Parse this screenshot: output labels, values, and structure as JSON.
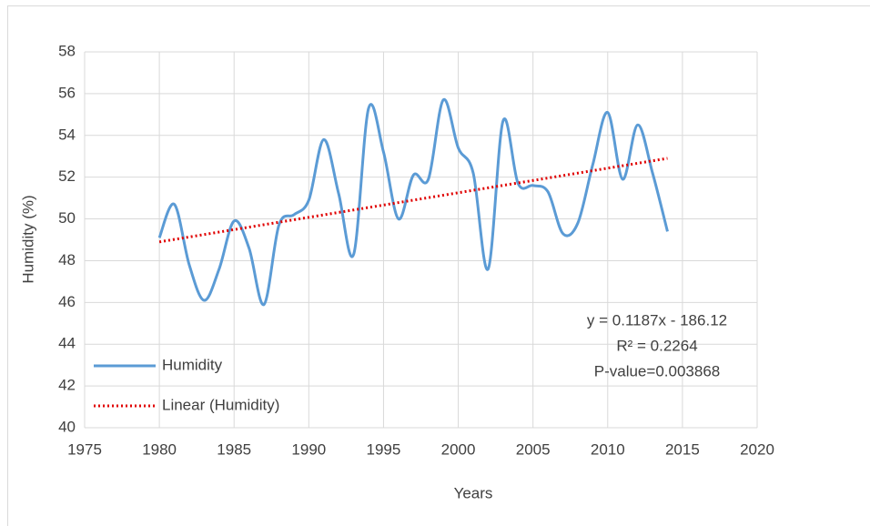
{
  "chart_data": {
    "type": "line",
    "x_label": "Years",
    "y_label": "Humidity (%)",
    "x": [
      1980,
      1981,
      1982,
      1983,
      1984,
      1985,
      1986,
      1987,
      1988,
      1989,
      1990,
      1991,
      1992,
      1993,
      1994,
      1995,
      1996,
      1997,
      1998,
      1999,
      2000,
      2001,
      2002,
      2003,
      2004,
      2005,
      2006,
      2007,
      2008,
      2009,
      2010,
      2011,
      2012,
      2013,
      2014
    ],
    "series": [
      {
        "name": "Humidity",
        "color": "#5b9bd5",
        "values": [
          49.1,
          50.7,
          47.8,
          46.1,
          47.6,
          49.9,
          48.6,
          45.9,
          49.7,
          50.2,
          50.9,
          53.8,
          51.2,
          48.3,
          55.3,
          53.2,
          50.0,
          52.1,
          51.9,
          55.7,
          53.4,
          52.2,
          47.6,
          54.7,
          51.7,
          51.6,
          51.3,
          49.3,
          49.8,
          52.6,
          55.1,
          51.9,
          54.5,
          52.2,
          49.4
        ]
      }
    ],
    "trendline": {
      "name": "Linear (Humidity)",
      "color": "#e00000",
      "x": [
        1980,
        2014
      ],
      "values": [
        48.9,
        52.9
      ]
    },
    "annotations": [
      "y = 0.1187x - 186.12",
      "R² = 0.2264",
      "P-value=0.003868"
    ],
    "xlim": [
      1975,
      2020
    ],
    "xticks": [
      1975,
      1980,
      1985,
      1990,
      1995,
      2000,
      2005,
      2010,
      2015,
      2020
    ],
    "ylim": [
      40,
      58
    ],
    "yticks": [
      40,
      42,
      44,
      46,
      48,
      50,
      52,
      54,
      56,
      58
    ],
    "grid": true,
    "legend": "lower left"
  }
}
